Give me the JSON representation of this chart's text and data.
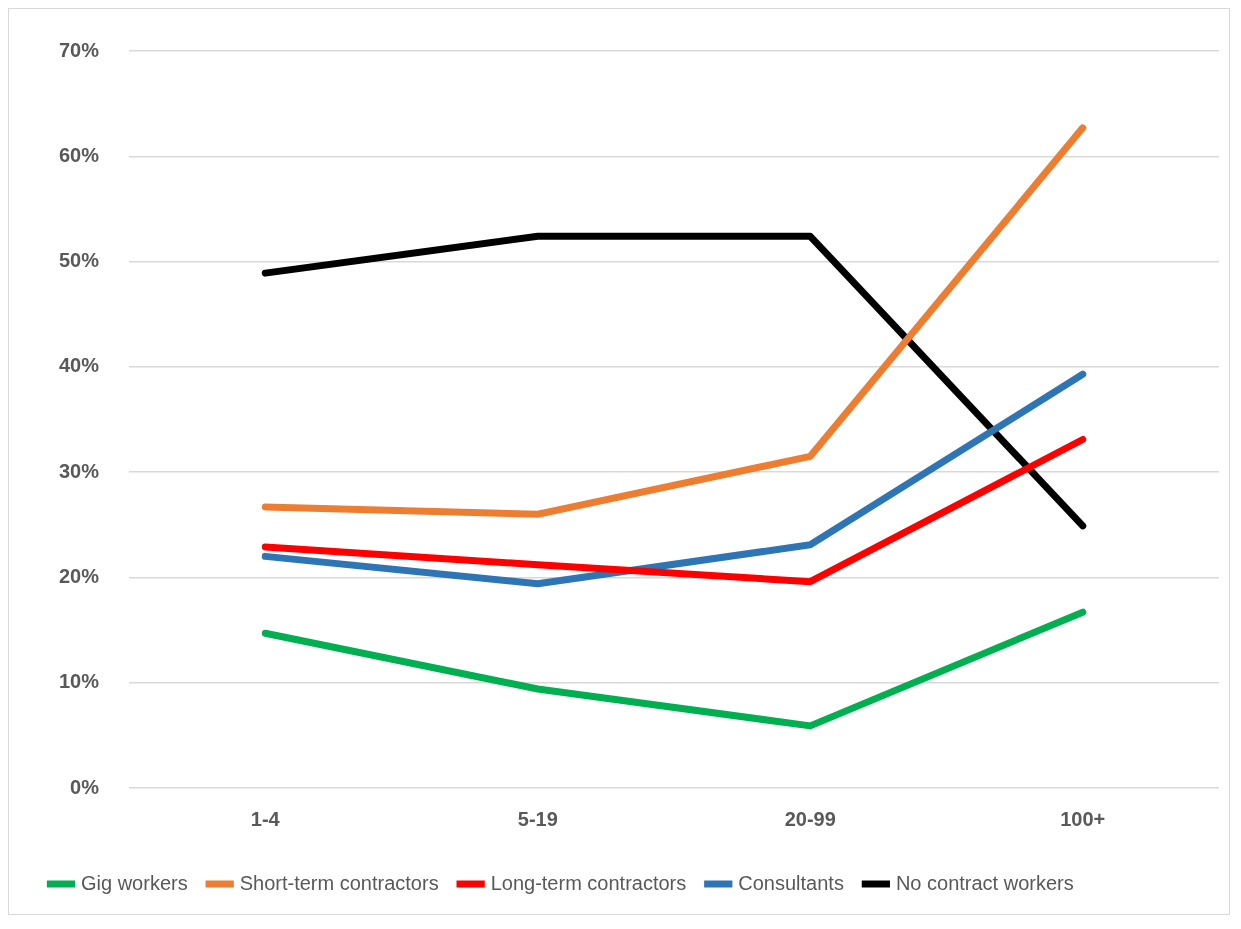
{
  "chart_data": {
    "type": "line",
    "categories": [
      "1-4",
      "5-19",
      "20-99",
      "100+"
    ],
    "series": [
      {
        "name": "Gig workers",
        "color": "#00b050",
        "values": [
          14.7,
          9.4,
          5.9,
          16.7
        ]
      },
      {
        "name": "Short-term contractors",
        "color": "#ed7d31",
        "values": [
          26.7,
          26.0,
          31.5,
          62.7
        ]
      },
      {
        "name": "Long-term contractors",
        "color": "#ff0000",
        "values": [
          22.9,
          21.2,
          19.6,
          33.1
        ]
      },
      {
        "name": "Consultants",
        "color": "#2e75b6",
        "values": [
          22.0,
          19.4,
          23.1,
          39.3
        ]
      },
      {
        "name": "No contract workers",
        "color": "#000000",
        "values": [
          48.9,
          52.4,
          52.4,
          24.9
        ]
      }
    ],
    "ylim": [
      0,
      70
    ],
    "yticks": [
      {
        "value": 0,
        "label": "0%"
      },
      {
        "value": 10,
        "label": "10%"
      },
      {
        "value": 20,
        "label": "20%"
      },
      {
        "value": 30,
        "label": "30%"
      },
      {
        "value": 40,
        "label": "40%"
      },
      {
        "value": 50,
        "label": "50%"
      },
      {
        "value": 60,
        "label": "60%"
      },
      {
        "value": 70,
        "label": "70%"
      }
    ],
    "grid": "y",
    "legend": "bottom",
    "marker": "none",
    "line_style": "solid"
  }
}
